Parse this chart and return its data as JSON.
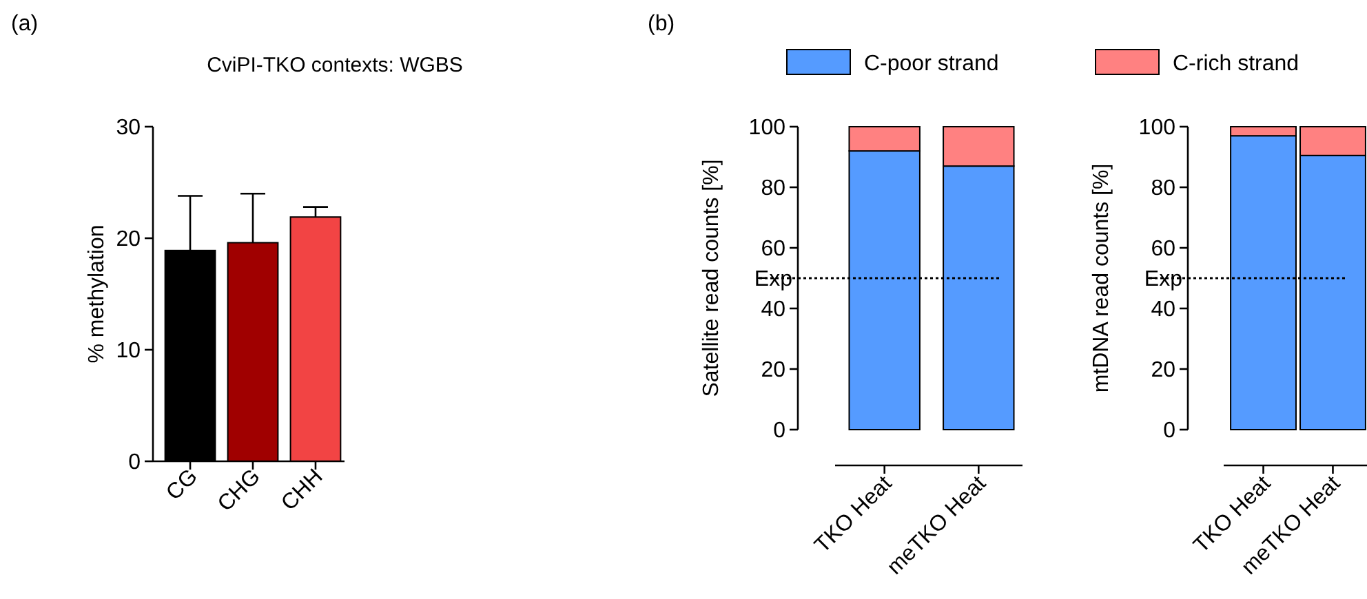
{
  "chart_data": [
    {
      "type": "bar",
      "title": "CviPI-TKO contexts: WGBS",
      "ylabel": "% methylation",
      "categories": [
        "CG",
        "CHG",
        "CHH"
      ],
      "values": [
        18.9,
        19.6,
        21.9
      ],
      "errors": [
        4.9,
        4.4,
        0.9
      ],
      "colors": [
        "#000000",
        "#a00000",
        "#f24444"
      ],
      "ylim": [
        0,
        30
      ],
      "yticks": [
        0,
        10,
        20,
        30
      ],
      "grid": false,
      "legend": false,
      "annotations": [
        "(a)"
      ]
    },
    {
      "type": "bar",
      "stacked": true,
      "ylabel": "Satellite read counts [%]",
      "categories": [
        "TKO Heat",
        "meTKO Heat"
      ],
      "series": [
        {
          "name": "C-poor strand",
          "color": "#559bff",
          "values": [
            92,
            87
          ]
        },
        {
          "name": "C-rich strand",
          "color": "#ff8181",
          "values": [
            8,
            13
          ]
        }
      ],
      "ylim": [
        0,
        100
      ],
      "yticks": [
        0,
        20,
        40,
        60,
        80,
        100
      ],
      "ref_lines": [
        {
          "axis": "y",
          "value": 50,
          "label": "Exp",
          "line_style": "dotted"
        }
      ],
      "legend": "top",
      "annotations": [
        "(b)"
      ]
    },
    {
      "type": "bar",
      "stacked": true,
      "ylabel": "mtDNA read counts [%]",
      "categories": [
        "TKO Heat",
        "meTKO Heat"
      ],
      "series": [
        {
          "color": "#559bff",
          "values": [
            97,
            90.5
          ]
        },
        {
          "color": "#ff8181",
          "values": [
            3,
            9.5
          ]
        }
      ],
      "ylim": [
        0,
        100
      ],
      "yticks": [
        0,
        20,
        40,
        60,
        80,
        100
      ],
      "ref_lines": [
        {
          "axis": "y",
          "value": 50,
          "label": "Exp",
          "line_style": "dotted"
        }
      ],
      "legend": false
    }
  ]
}
